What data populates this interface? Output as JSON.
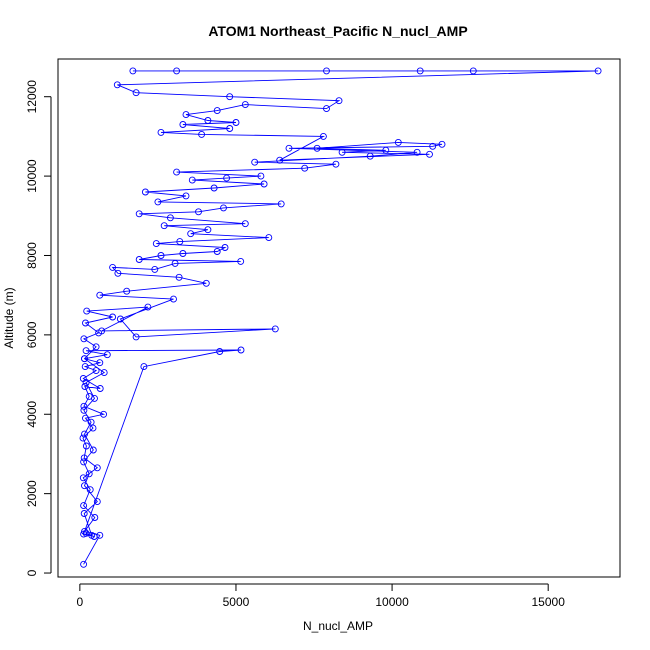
{
  "chart_data": {
    "type": "scatter",
    "title": "ATOM1 Northeast_Pacific N_nucl_AMP",
    "xlabel": "N_nucl_AMP",
    "ylabel": "Altitude (m)",
    "xlim": [
      -700,
      17300
    ],
    "ylim": [
      -100,
      12950
    ],
    "x_ticks": [
      0,
      5000,
      10000,
      15000
    ],
    "y_ticks": [
      0,
      2000,
      4000,
      6000,
      8000,
      10000,
      12000
    ],
    "grid": false,
    "legend": "none",
    "marker": "open-circle",
    "line_connected": true,
    "series_color": "#0000ff",
    "series": [
      {
        "x": [
          120,
          640,
          150,
          480,
          120,
          330,
          110,
          560,
          140,
          210,
          100,
          420,
          180,
          760,
          130,
          300,
          160,
          650,
          110,
          520,
          170,
          640,
          150,
          880,
          200,
          5160,
          4480,
          2050,
          120,
          460,
          200,
          380,
          140,
          560,
          150,
          300,
          120,
          430,
          150,
          360,
          130,
          470,
          200,
          780,
          150,
          520,
          130,
          600,
          180,
          1050,
          220,
          2180,
          700,
          6260,
          1800,
          1300,
          3000,
          640,
          1500,
          4050,
          3180,
          1220,
          1050,
          2400,
          3050,
          5150,
          1900,
          2600,
          3300,
          4400,
          4650,
          2450,
          3200,
          6050,
          3550,
          4100,
          2700,
          5300,
          2900,
          1900,
          3800,
          4600,
          6450,
          2500,
          3400,
          2100,
          4300,
          5900,
          3600,
          4700,
          5800,
          3100,
          7200,
          8200,
          5600,
          9300,
          10800,
          6700,
          11300,
          11600,
          10200,
          7600,
          9800,
          8400,
          11200,
          6400,
          7800,
          3900,
          2600,
          4800,
          3300,
          5000,
          4100,
          3400,
          4400,
          5300,
          7900,
          8300,
          4800,
          1800,
          1200,
          16600,
          12600,
          10900,
          7900,
          3100,
          1700
        ],
        "y": [
          220,
          950,
          1050,
          1400,
          1700,
          2100,
          2400,
          2650,
          2900,
          3200,
          3400,
          3650,
          3900,
          4000,
          4200,
          4450,
          4700,
          4650,
          4900,
          5100,
          5200,
          5300,
          5400,
          5500,
          5600,
          5620,
          5580,
          5200,
          980,
          920,
          1000,
          950,
          1500,
          1800,
          2200,
          2500,
          2800,
          3100,
          3500,
          3800,
          4100,
          4400,
          4800,
          5050,
          5400,
          5700,
          5900,
          6050,
          6300,
          6450,
          6600,
          6700,
          6100,
          6150,
          5950,
          6400,
          6900,
          7000,
          7100,
          7300,
          7450,
          7550,
          7700,
          7650,
          7800,
          7850,
          7900,
          8000,
          8050,
          8100,
          8200,
          8300,
          8350,
          8450,
          8550,
          8650,
          8750,
          8800,
          8950,
          9050,
          9100,
          9200,
          9300,
          9350,
          9500,
          9600,
          9700,
          9800,
          9900,
          9950,
          10000,
          10100,
          10200,
          10300,
          10350,
          10500,
          10600,
          10700,
          10750,
          10800,
          10850,
          10700,
          10650,
          10600,
          10550,
          10400,
          11000,
          11050,
          11100,
          11200,
          11300,
          11350,
          11400,
          11550,
          11650,
          11800,
          11700,
          11900,
          12000,
          12100,
          12300,
          12650,
          12650,
          12650,
          12650,
          12650,
          12650
        ]
      }
    ]
  }
}
